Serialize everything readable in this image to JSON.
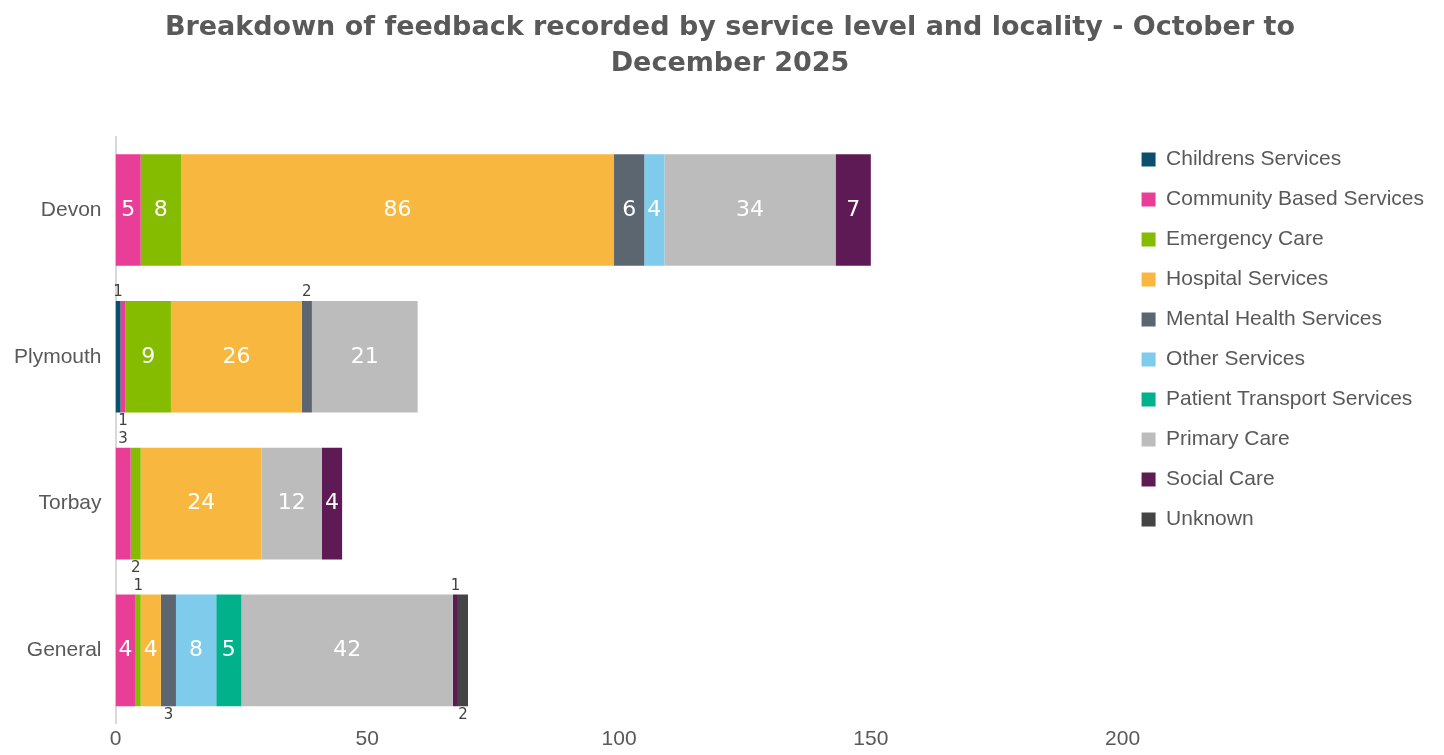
{
  "chart_data": {
    "type": "bar",
    "orientation": "horizontal",
    "stacked": true,
    "title": "Breakdown of feedback recorded by service level and locality - October to December 2025",
    "categories": [
      "Devon",
      "Plymouth",
      "Torbay",
      "General"
    ],
    "xlim": [
      0,
      200
    ],
    "xticks": [
      0,
      50,
      100,
      150,
      200
    ],
    "grid": false,
    "legend": "right",
    "data_labels": true,
    "series": [
      {
        "name": "Childrens Services",
        "color": "#0b4f6c",
        "values": [
          null,
          1,
          null,
          null
        ]
      },
      {
        "name": "Community Based Services",
        "color": "#e83e98",
        "values": [
          5,
          1,
          3,
          4
        ]
      },
      {
        "name": "Emergency Care",
        "color": "#86bc00",
        "values": [
          8,
          9,
          2,
          1
        ]
      },
      {
        "name": "Hospital Services",
        "color": "#f8b73e",
        "values": [
          86,
          26,
          24,
          4
        ]
      },
      {
        "name": "Mental Health Services",
        "color": "#5b6670",
        "values": [
          6,
          2,
          null,
          3
        ]
      },
      {
        "name": "Other Services",
        "color": "#7ecbec",
        "values": [
          4,
          null,
          null,
          8
        ]
      },
      {
        "name": "Patient Transport Services",
        "color": "#00b18c",
        "values": [
          null,
          null,
          null,
          5
        ]
      },
      {
        "name": "Primary Care",
        "color": "#bcbcbc",
        "values": [
          34,
          21,
          12,
          42
        ]
      },
      {
        "name": "Social Care",
        "color": "#5e1a55",
        "values": [
          7,
          null,
          4,
          1
        ]
      },
      {
        "name": "Unknown",
        "color": "#444444",
        "values": [
          null,
          null,
          null,
          2
        ]
      }
    ]
  }
}
